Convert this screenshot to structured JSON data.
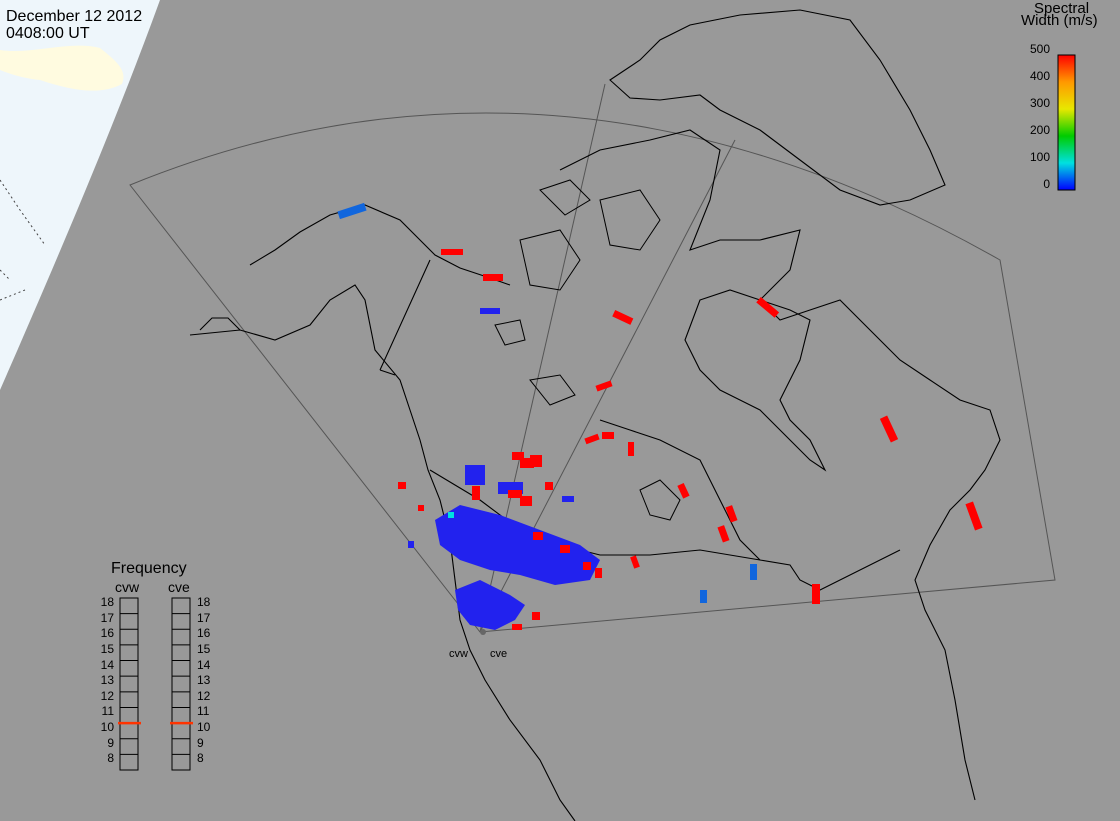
{
  "header": {
    "date": "December 12 2012",
    "time": "0408:00 UT"
  },
  "colorbar": {
    "title_line1": "Spectral",
    "title_line2": "Width (m/s)",
    "ticks": [
      "500",
      "400",
      "300",
      "200",
      "100",
      "0"
    ],
    "colors": [
      "#ff0000",
      "#ff9900",
      "#e8e800",
      "#00cc00",
      "#00e0e0",
      "#0000ff"
    ]
  },
  "frequency_panel": {
    "title": "Frequency",
    "left_name": "cvw",
    "right_name": "cve",
    "ticks": [
      "18",
      "17",
      "16",
      "15",
      "14",
      "13",
      "12",
      "11",
      "10",
      "9",
      "8"
    ],
    "cvw_frequency_mhz": 10.5,
    "cve_frequency_mhz": 10.5,
    "marker_color": "#ff3300"
  },
  "radar_sites": {
    "west_label": "cvw",
    "east_label": "cve"
  },
  "colors": {
    "map_background": "#999999",
    "daylight": "#eef6fb",
    "low_width_echo": "#2222ee",
    "high_width_echo": "#ff0000"
  }
}
